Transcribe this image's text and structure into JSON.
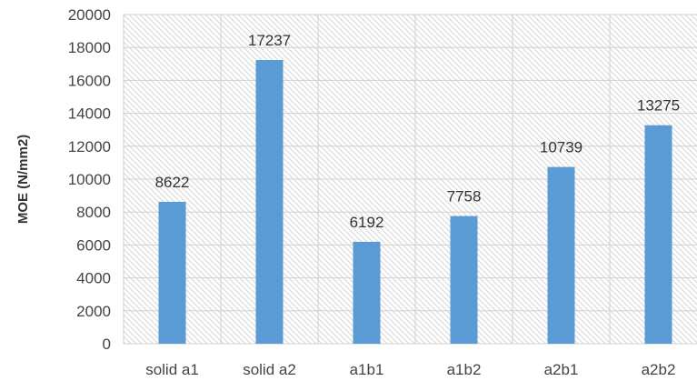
{
  "chart_data": {
    "type": "bar",
    "categories": [
      "solid a1",
      "solid a2",
      "a1b1",
      "a1b2",
      "a2b1",
      "a2b2"
    ],
    "values": [
      8622,
      17237,
      6192,
      7758,
      10739,
      13275
    ],
    "data_labels": [
      "8622",
      "17237",
      "6192",
      "7758",
      "10739",
      "13275"
    ],
    "ylabel": "MOE (N/mm2)",
    "ylim": [
      0,
      20000
    ],
    "yticks": [
      "0",
      "2000",
      "4000",
      "6000",
      "8000",
      "10000",
      "12000",
      "14000",
      "16000",
      "18000",
      "20000"
    ],
    "grid": true,
    "bar_color": "#5b9bd5",
    "background_pattern": "diagonal-hatch"
  }
}
